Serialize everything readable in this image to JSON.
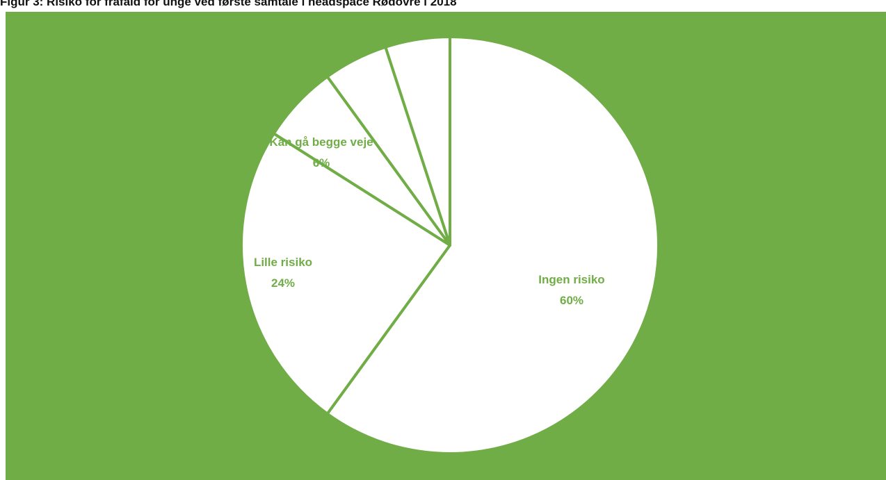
{
  "caption": "Figur 3: Risiko for frafald  for unge ved første samtale i headspace Rødovre i 2018",
  "colors": {
    "background": "#70AD47",
    "slice_fill": "#FFFFFF",
    "slice_border": "#70AD47",
    "label": "#70AD47"
  },
  "chart_data": {
    "type": "pie",
    "title": "",
    "slices": [
      {
        "label": "Ingen risiko",
        "value": 60,
        "pct_label": "60%"
      },
      {
        "label": "Lille risiko",
        "value": 24,
        "pct_label": "24%"
      },
      {
        "label": "Kan gå begge veje",
        "value": 6,
        "pct_label": "6%"
      },
      {
        "label": "",
        "value": 5,
        "pct_label": ""
      },
      {
        "label": "",
        "value": 5,
        "pct_label": ""
      }
    ],
    "start_angle_deg": 0,
    "direction": "clockwise",
    "legend": "none"
  }
}
